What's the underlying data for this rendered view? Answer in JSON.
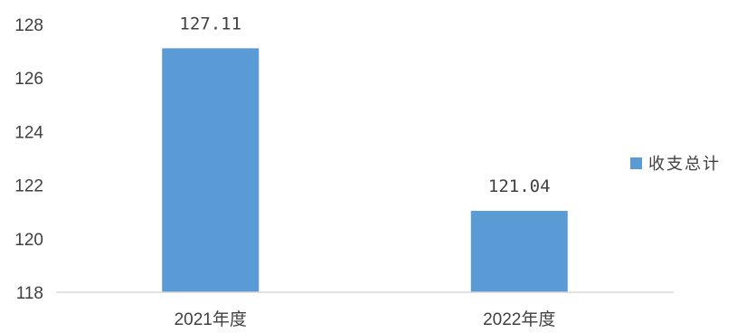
{
  "chart_data": {
    "type": "bar",
    "categories": [
      "2021年度",
      "2022年度"
    ],
    "series": [
      {
        "name": "收支总计",
        "values": [
          127.11,
          121.04
        ],
        "color": "#5B9BD5"
      }
    ],
    "data_labels": [
      "127.11",
      "121.04"
    ],
    "title": "",
    "xlabel": "",
    "ylabel": "",
    "ylim": [
      118,
      128
    ],
    "yticks": [
      118,
      120,
      122,
      124,
      126,
      128
    ],
    "grid": false,
    "legend_position": "right",
    "axis_color": "#D9D9D9",
    "text_color": "#404040"
  }
}
